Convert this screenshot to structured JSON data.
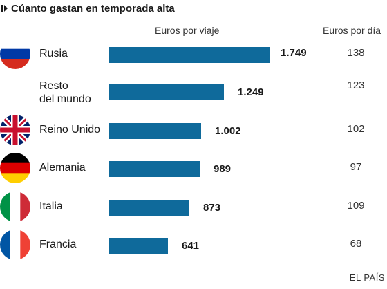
{
  "header": {
    "title": "Cúanto gastan en temporada alta",
    "col_viaje": "Euros por viaje",
    "col_dia": "Euros por día"
  },
  "source": "EL PAÍS",
  "colors": {
    "bar": "#0f6a9b"
  },
  "chart_data": {
    "type": "bar",
    "orientation": "horizontal",
    "title": "Cúanto gastan en temporada alta",
    "series": [
      {
        "name": "Euros por viaje",
        "values": [
          1749,
          1249,
          1002,
          989,
          873,
          641
        ]
      },
      {
        "name": "Euros por día",
        "values": [
          138,
          123,
          102,
          97,
          109,
          68
        ]
      }
    ],
    "categories": [
      "Rusia",
      "Resto del mundo",
      "Reino Unido",
      "Alemania",
      "Italia",
      "Francia"
    ],
    "rows": [
      {
        "country": "Rusia",
        "flag": "russia-flag",
        "viaje": 1749,
        "viaje_label": "1.749",
        "dia": "138"
      },
      {
        "country": "Resto\ndel mundo",
        "flag": "",
        "viaje": 1249,
        "viaje_label": "1.249",
        "dia": "123"
      },
      {
        "country": "Reino Unido",
        "flag": "uk-flag",
        "viaje": 1002,
        "viaje_label": "1.002",
        "dia": "102"
      },
      {
        "country": "Alemania",
        "flag": "germany-flag",
        "viaje": 989,
        "viaje_label": "989",
        "dia": "97"
      },
      {
        "country": "Italia",
        "flag": "italy-flag",
        "viaje": 873,
        "viaje_label": "873",
        "dia": "109"
      },
      {
        "country": "Francia",
        "flag": "france-flag",
        "viaje": 641,
        "viaje_label": "641",
        "dia": "68"
      }
    ]
  }
}
